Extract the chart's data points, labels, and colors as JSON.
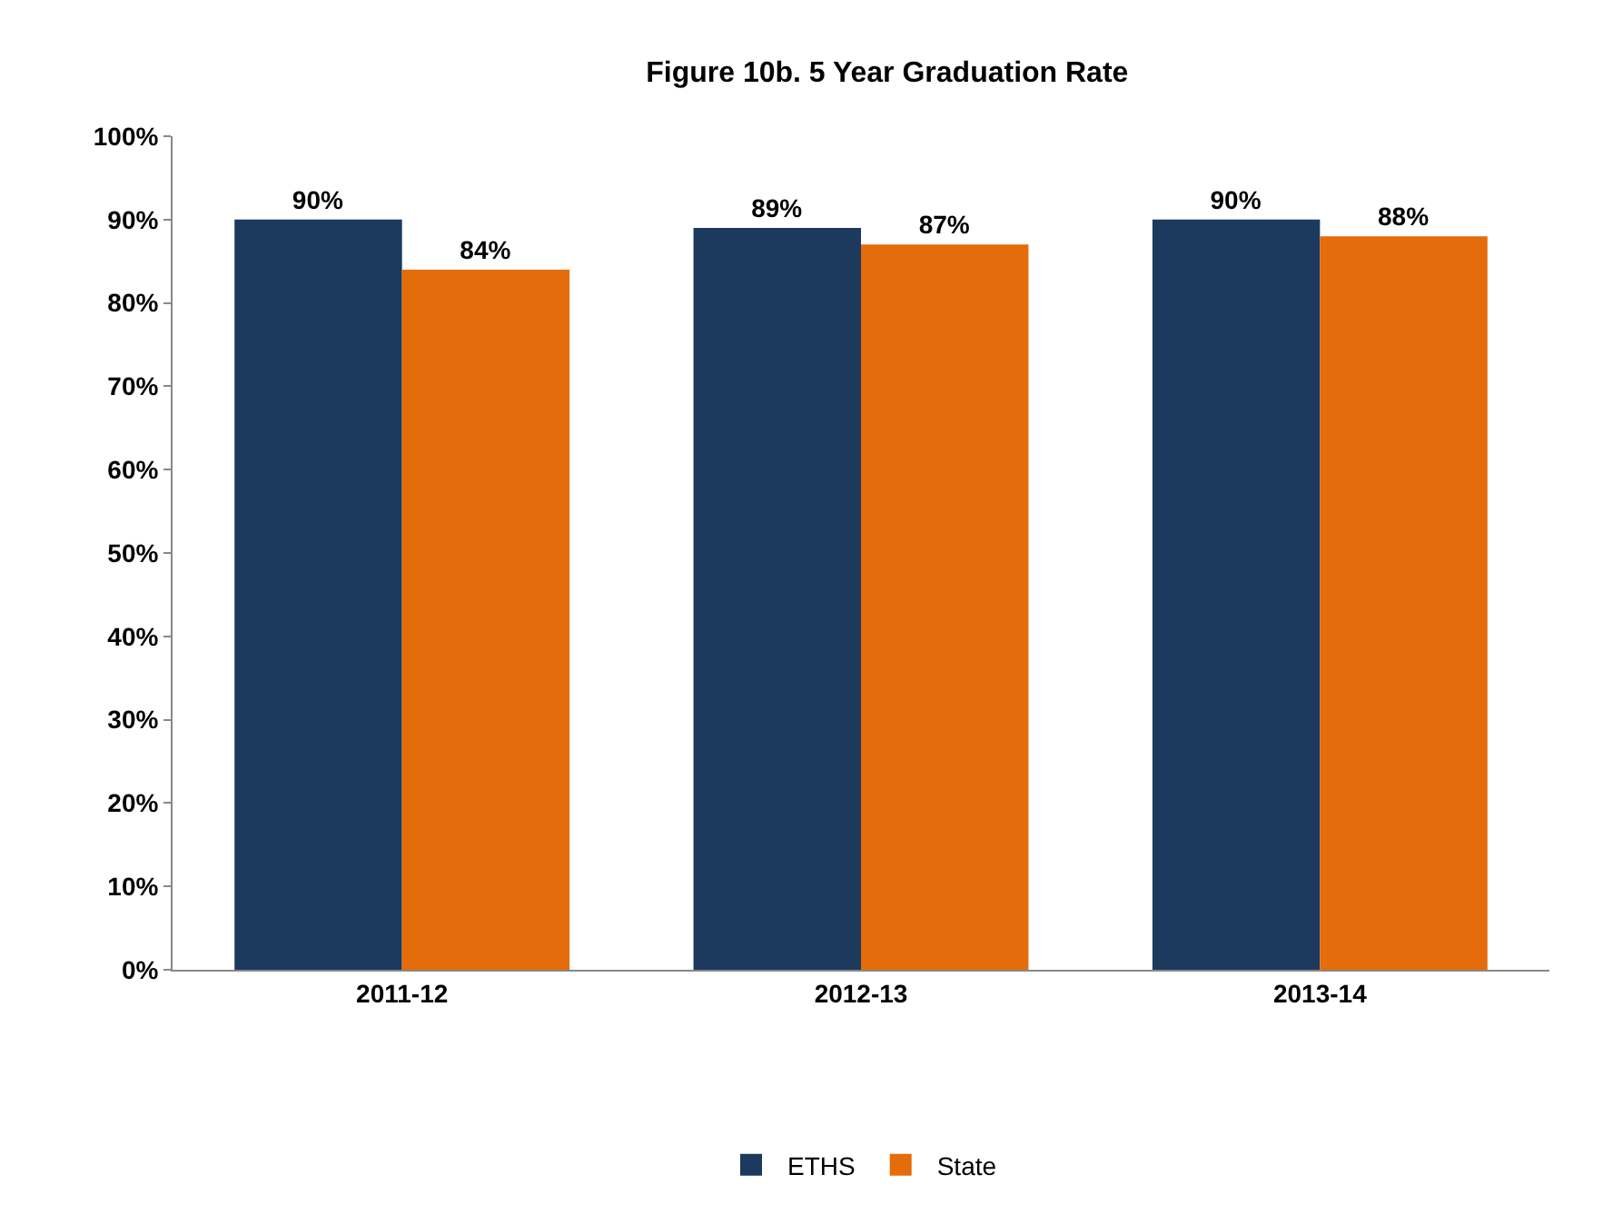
{
  "chart_data": {
    "type": "bar",
    "title": "Figure 10b. 5 Year Graduation Rate",
    "categories": [
      "2011-12",
      "2012-13",
      "2013-14"
    ],
    "series": [
      {
        "name": "ETHS",
        "color": "#1b3a5e",
        "values": [
          90,
          89,
          90
        ],
        "value_labels": [
          "90%",
          "89%",
          "90%"
        ]
      },
      {
        "name": "State",
        "color": "#e46c0a",
        "values": [
          84,
          87,
          88
        ],
        "value_labels": [
          "84%",
          "87%",
          "88%"
        ]
      }
    ],
    "ylim": [
      0,
      100
    ],
    "yticks": [
      {
        "value": 0,
        "label": "0%"
      },
      {
        "value": 10,
        "label": "10%"
      },
      {
        "value": 20,
        "label": "20%"
      },
      {
        "value": 30,
        "label": "30%"
      },
      {
        "value": 40,
        "label": "40%"
      },
      {
        "value": 50,
        "label": "50%"
      },
      {
        "value": 60,
        "label": "60%"
      },
      {
        "value": 70,
        "label": "70%"
      },
      {
        "value": 80,
        "label": "80%"
      },
      {
        "value": 90,
        "label": "90%"
      },
      {
        "value": 100,
        "label": "100%"
      }
    ],
    "legend": "bottom"
  }
}
